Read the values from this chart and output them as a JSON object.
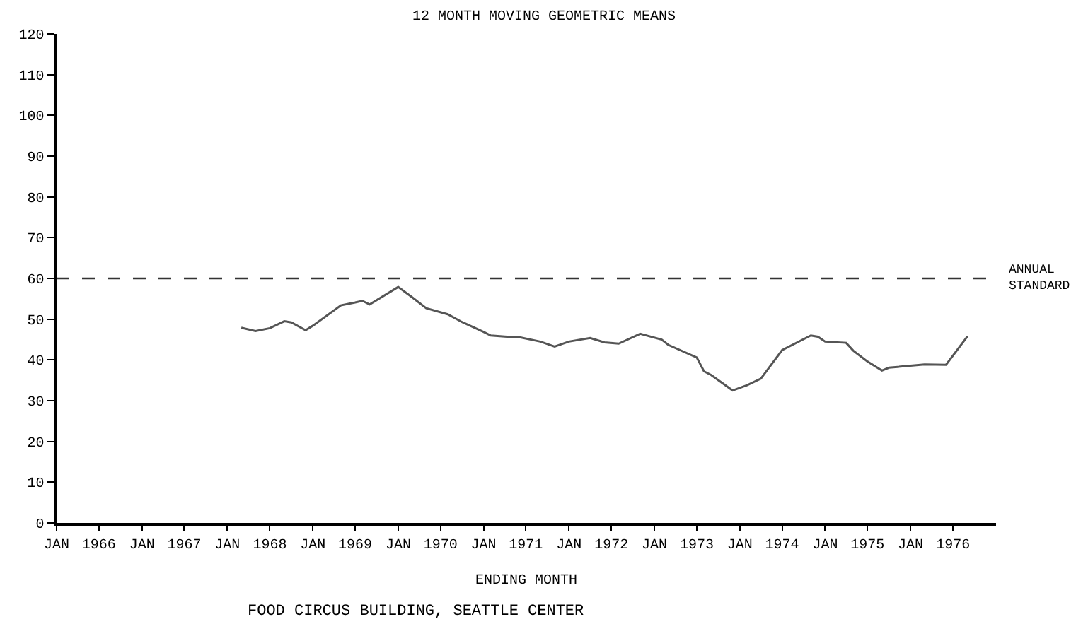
{
  "chart_data": {
    "type": "line",
    "title": "12 MONTH MOVING GEOMETRIC MEANS",
    "xlabel": "ENDING MONTH",
    "annotations": [
      "FOOD CIRCUS BUILDING, SEATTLE CENTER"
    ],
    "x": [
      "1968-03",
      "1968-05",
      "1968-07",
      "1968-09",
      "1968-10",
      "1968-12",
      "1969-01",
      "1969-05",
      "1969-07",
      "1969-08",
      "1969-09",
      "1970-01",
      "1970-03",
      "1970-05",
      "1970-08",
      "1970-10",
      "1971-01",
      "1971-02",
      "1971-05",
      "1971-06",
      "1971-09",
      "1971-11",
      "1972-01",
      "1972-04",
      "1972-06",
      "1972-08",
      "1972-11",
      "1973-02",
      "1973-03",
      "1973-07",
      "1973-08",
      "1973-09",
      "1973-12",
      "1974-02",
      "1974-04",
      "1974-07",
      "1974-11",
      "1974-12",
      "1975-01",
      "1975-04",
      "1975-05",
      "1975-07",
      "1975-09",
      "1975-10",
      "1976-03",
      "1976-06",
      "1976-09"
    ],
    "series": [
      {
        "color": "#555555",
        "values": [
          47.9,
          47.1,
          47.8,
          49.5,
          49.2,
          47.3,
          48.4,
          53.4,
          54.1,
          54.5,
          53.6,
          57.9,
          55.4,
          52.7,
          51.2,
          49.3,
          46.9,
          46.0,
          45.6,
          45.6,
          44.5,
          43.3,
          44.5,
          45.4,
          44.3,
          44.0,
          46.4,
          45.0,
          43.7,
          40.6,
          37.2,
          36.3,
          32.5,
          33.8,
          35.4,
          42.4,
          46.0,
          45.7,
          44.5,
          44.2,
          42.3,
          39.6,
          37.4,
          38.1,
          38.9,
          38.8,
          45.8
        ]
      }
    ],
    "xlim": [
      "1966-01",
      "1977-01"
    ],
    "xticks": [
      {
        "value": "1966-01",
        "label": "JAN"
      },
      {
        "value": "1966-07",
        "label": "1966"
      },
      {
        "value": "1967-01",
        "label": "JAN"
      },
      {
        "value": "1967-07",
        "label": "1967"
      },
      {
        "value": "1968-01",
        "label": "JAN"
      },
      {
        "value": "1968-07",
        "label": "1968"
      },
      {
        "value": "1969-01",
        "label": "JAN"
      },
      {
        "value": "1969-07",
        "label": "1969"
      },
      {
        "value": "1970-01",
        "label": "JAN"
      },
      {
        "value": "1970-07",
        "label": "1970"
      },
      {
        "value": "1971-01",
        "label": "JAN"
      },
      {
        "value": "1971-07",
        "label": "1971"
      },
      {
        "value": "1972-01",
        "label": "JAN"
      },
      {
        "value": "1972-07",
        "label": "1972"
      },
      {
        "value": "1973-01",
        "label": "JAN"
      },
      {
        "value": "1973-07",
        "label": "1973"
      },
      {
        "value": "1974-01",
        "label": "JAN"
      },
      {
        "value": "1974-07",
        "label": "1974"
      },
      {
        "value": "1975-01",
        "label": "JAN"
      },
      {
        "value": "1975-07",
        "label": "1975"
      },
      {
        "value": "1976-01",
        "label": "JAN"
      },
      {
        "value": "1976-07",
        "label": "1976"
      }
    ],
    "ylim": [
      0,
      120
    ],
    "yticks": [
      0,
      10,
      20,
      30,
      40,
      50,
      60,
      70,
      80,
      90,
      100,
      110,
      120
    ],
    "ref_lines": [
      {
        "axis": "y",
        "value": 60,
        "label": "ANNUAL STANDARD",
        "color": "#333333",
        "line_style": "dashed"
      }
    ],
    "marker": "none",
    "line_style": "solid"
  }
}
